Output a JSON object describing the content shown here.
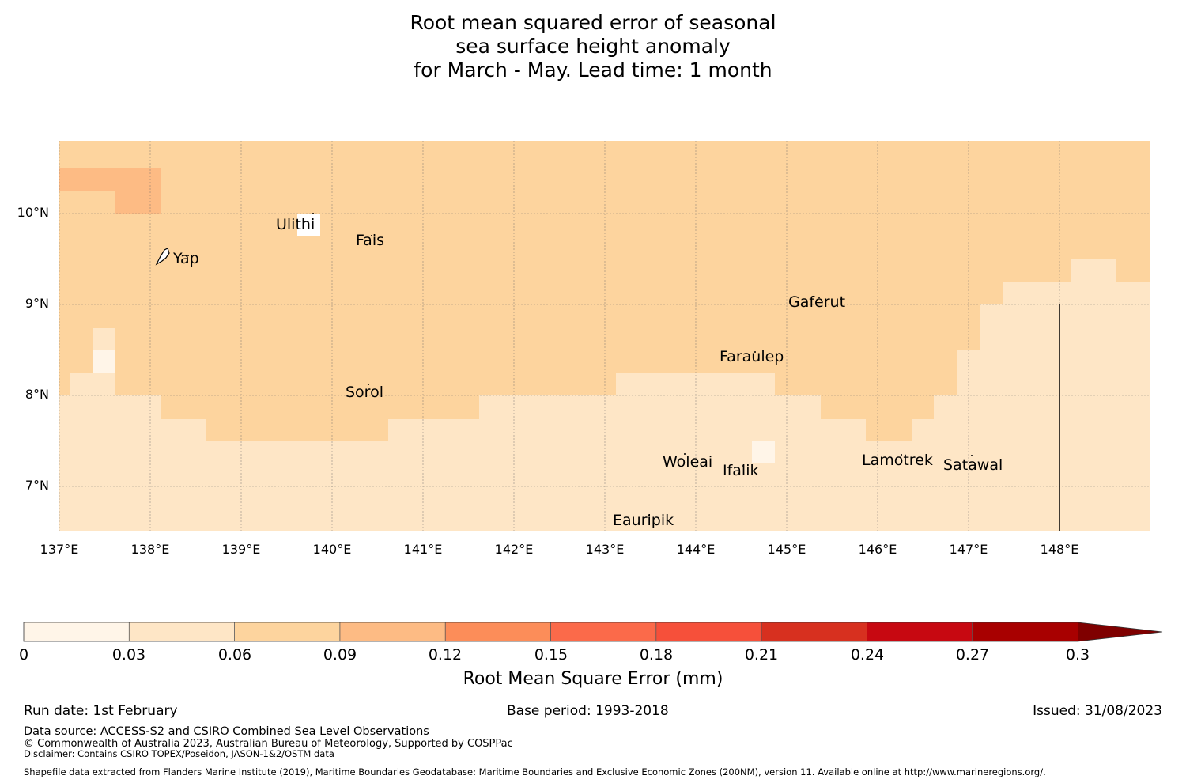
{
  "title": {
    "line1": "Root mean squared error of seasonal",
    "line2": "sea surface height anomaly",
    "line3": "for March - May. Lead time: 1 month"
  },
  "map": {
    "lat_labels": [
      "10°N",
      "9°N",
      "8°N",
      "7°N"
    ],
    "lon_labels": [
      "137°E",
      "138°E",
      "139°E",
      "140°E",
      "141°E",
      "142°E",
      "143°E",
      "144°E",
      "145°E",
      "146°E",
      "147°E",
      "148°E"
    ],
    "places": [
      "Yap",
      "Ulithi",
      "Fais",
      "Gaferut",
      "Faraulep",
      "Sorol",
      "Woleai",
      "Ifalik",
      "Lamotrek",
      "Satawal",
      "Eauripik"
    ],
    "colors": {
      "band_0_003": "#fff5e8",
      "band_003_006": "#fee6c6",
      "band_006_009": "#fdd49e",
      "band_009_012": "#fdbb84",
      "island": "#ffffff",
      "grid": "#666666"
    }
  },
  "colorbar": {
    "ticks": [
      "0",
      "0.03",
      "0.06",
      "0.09",
      "0.12",
      "0.15",
      "0.18",
      "0.21",
      "0.24",
      "0.27",
      "0.3"
    ],
    "colors": [
      "#fff5e8",
      "#fee6c6",
      "#fdd49e",
      "#fdbb84",
      "#fc8d59",
      "#fb6a4a",
      "#f6503a",
      "#d7301f",
      "#c70811",
      "#a80000",
      "#7f0000"
    ],
    "label": "Root Mean Square Error (mm)"
  },
  "footer": {
    "run_date": "Run date: 1st February",
    "base_period": "Base period: 1993-2018",
    "issued": "Issued: 31/08/2023",
    "data_source": "Data source: ACCESS-S2 and CSIRO Combined Sea Level Observations",
    "copyright": "© Commonwealth of Australia 2023, Australian Bureau of Meteorology, Supported by COSPPac",
    "disclaimer": "Disclaimer: Contains CSIRO TOPEX/Poseidon, JASON-1&2/OSTM data",
    "shapefile": "Shapefile data extracted from Flanders Marine Institute (2019), Maritime Boundaries Geodatabase: Maritime Boundaries and Exclusive Economic Zones (200NM), version 11. Available online at http://www.marineregions.org/."
  }
}
